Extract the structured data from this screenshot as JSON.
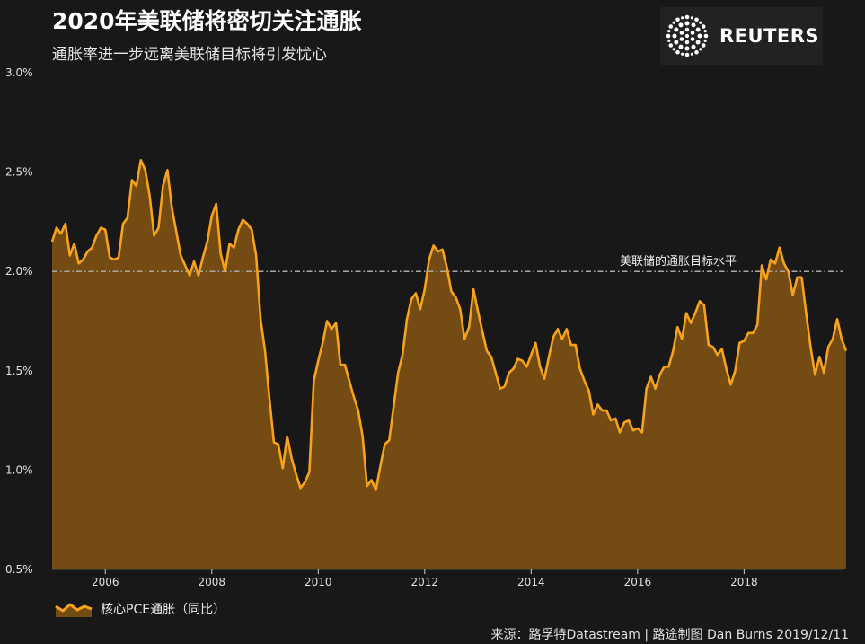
{
  "title": "2020年美联储将密切关注通胀",
  "subtitle": "通胀率进一步远离美联储目标将引发忧心",
  "logo": {
    "text": "REUTERS",
    "icon": "reuters-dot-logo-icon"
  },
  "legend": {
    "label": "核心PCE通胀（同比）"
  },
  "source": "来源：路孚特Datastream | 路途制图 Dan Burns 2019/12/11",
  "colors": {
    "line": "#f7a21b",
    "fill": "#744b12",
    "reference": "#a8a8a8",
    "background": "#181818"
  },
  "chart_data": {
    "type": "area",
    "ylim": [
      0.5,
      3.0
    ],
    "xlim": [
      2005.0,
      2019.85
    ],
    "yticks": [
      {
        "value": 0.5,
        "label": "0.5%"
      },
      {
        "value": 1.0,
        "label": "1.0%"
      },
      {
        "value": 1.5,
        "label": "1.5%"
      },
      {
        "value": 2.0,
        "label": "2.0%"
      },
      {
        "value": 2.5,
        "label": "2.5%"
      },
      {
        "value": 3.0,
        "label": "3.0%"
      }
    ],
    "xticks": [
      {
        "value": 2006,
        "label": "2006"
      },
      {
        "value": 2008,
        "label": "2008"
      },
      {
        "value": 2010,
        "label": "2010"
      },
      {
        "value": 2012,
        "label": "2012"
      },
      {
        "value": 2014,
        "label": "2014"
      },
      {
        "value": 2016,
        "label": "2016"
      },
      {
        "value": 2018,
        "label": "2018"
      }
    ],
    "reference_line": {
      "value": 2.0,
      "label": "美联储的通胀目标水平"
    },
    "series": [
      {
        "name": "核心PCE通胀（同比）",
        "start": 2005.0,
        "step": 0.08333,
        "values": [
          2.15,
          2.22,
          2.19,
          2.24,
          2.08,
          2.14,
          2.04,
          2.06,
          2.1,
          2.12,
          2.18,
          2.22,
          2.21,
          2.07,
          2.06,
          2.07,
          2.24,
          2.27,
          2.46,
          2.43,
          2.56,
          2.51,
          2.38,
          2.18,
          2.22,
          2.43,
          2.51,
          2.32,
          2.2,
          2.08,
          2.03,
          1.98,
          2.05,
          1.98,
          2.07,
          2.15,
          2.28,
          2.34,
          2.09,
          2.0,
          2.14,
          2.12,
          2.21,
          2.26,
          2.24,
          2.21,
          2.08,
          1.76,
          1.6,
          1.36,
          1.14,
          1.13,
          1.01,
          1.17,
          1.06,
          0.98,
          0.91,
          0.94,
          0.99,
          1.45,
          1.55,
          1.64,
          1.75,
          1.71,
          1.74,
          1.53,
          1.53,
          1.45,
          1.37,
          1.3,
          1.17,
          0.92,
          0.95,
          0.9,
          1.02,
          1.13,
          1.15,
          1.32,
          1.49,
          1.58,
          1.76,
          1.86,
          1.89,
          1.81,
          1.91,
          2.06,
          2.13,
          2.1,
          2.11,
          2.02,
          1.9,
          1.87,
          1.81,
          1.66,
          1.72,
          1.91,
          1.8,
          1.7,
          1.6,
          1.57,
          1.49,
          1.41,
          1.42,
          1.49,
          1.51,
          1.56,
          1.55,
          1.52,
          1.58,
          1.64,
          1.52,
          1.46,
          1.57,
          1.67,
          1.71,
          1.66,
          1.71,
          1.63,
          1.63,
          1.51,
          1.45,
          1.4,
          1.28,
          1.33,
          1.3,
          1.3,
          1.25,
          1.26,
          1.19,
          1.24,
          1.25,
          1.2,
          1.21,
          1.19,
          1.41,
          1.47,
          1.41,
          1.48,
          1.52,
          1.52,
          1.6,
          1.72,
          1.66,
          1.79,
          1.74,
          1.79,
          1.85,
          1.83,
          1.63,
          1.62,
          1.58,
          1.61,
          1.51,
          1.43,
          1.5,
          1.64,
          1.65,
          1.69,
          1.69,
          1.73,
          2.03,
          1.96,
          2.06,
          2.04,
          2.12,
          2.04,
          2.0,
          1.88,
          1.97,
          1.97,
          1.79,
          1.62,
          1.48,
          1.57,
          1.49,
          1.62,
          1.66,
          1.76,
          1.66,
          1.6
        ]
      }
    ]
  }
}
